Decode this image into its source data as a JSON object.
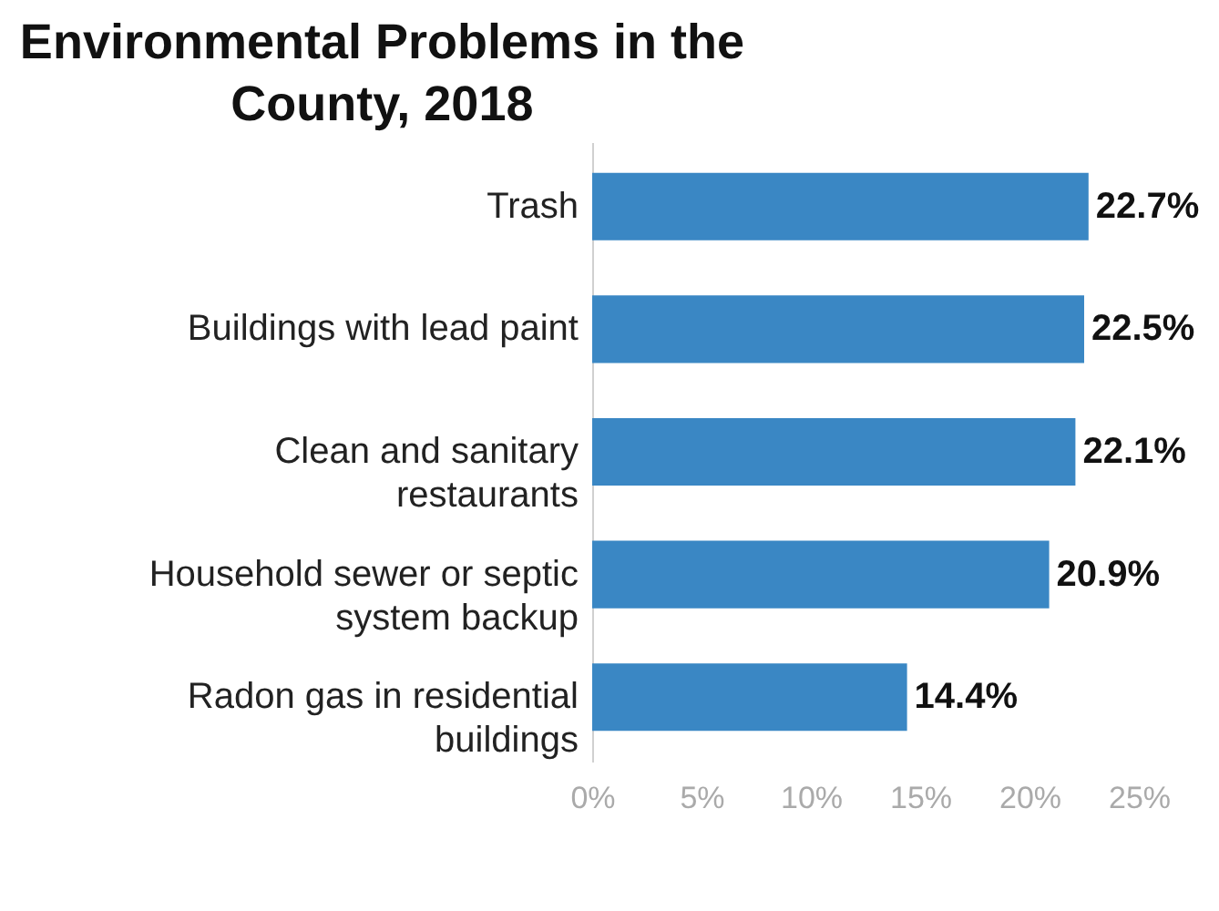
{
  "chart_data": {
    "type": "bar",
    "orientation": "horizontal",
    "title": "Environmental Problems in the County, 2018",
    "categories": [
      "Trash",
      "Buildings with lead paint",
      "Clean and sanitary restaurants",
      "Household sewer or septic system backup",
      "Radon gas in residential buildings"
    ],
    "values": [
      22.7,
      22.5,
      22.1,
      20.9,
      14.4
    ],
    "value_labels": [
      "22.7%",
      "22.5%",
      "22.1%",
      "20.9%",
      "14.4%"
    ],
    "color": "#3a87c4",
    "xlim": [
      0,
      25
    ],
    "xticks": [
      {
        "value": 0,
        "label": "0%"
      },
      {
        "value": 5,
        "label": "5%"
      },
      {
        "value": 10,
        "label": "10%"
      },
      {
        "value": 15,
        "label": "15%"
      },
      {
        "value": 20,
        "label": "20%"
      },
      {
        "value": 25,
        "label": "25%"
      }
    ],
    "grid": false
  }
}
